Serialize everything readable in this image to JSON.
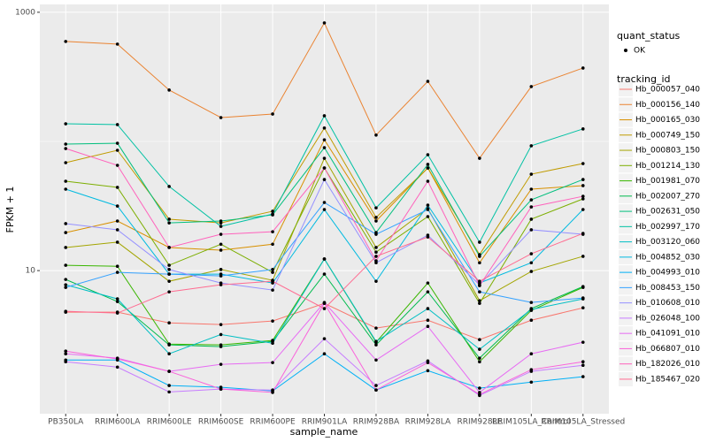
{
  "chart_data": {
    "type": "line",
    "x_label": "sample_name",
    "y_label": "FPKM + 1",
    "categories": [
      "PB350LA",
      "RRIM600LA",
      "RRIM600LE",
      "RRIM600SE",
      "RRIM600PE",
      "RRIM901LA",
      "RRIM928BA",
      "RRIM928LA",
      "RRIM928LE",
      "RRIM105LA_Control",
      "RRIM105LA_Stressed"
    ],
    "ylim": [
      0.78,
      1150
    ],
    "yticks": [
      10,
      1000
    ],
    "log_scale": true,
    "grid": true,
    "point_legend": {
      "title": "quant_status",
      "label": "OK",
      "color": "#000000"
    },
    "legend_title": "tracking_id",
    "legend_position": "right",
    "series": [
      {
        "name": "Hb_000057_040",
        "color": "#F8766D",
        "values": [
          4.77,
          4.77,
          3.94,
          3.82,
          4.07,
          5.58,
          3.59,
          4.13,
          2.92,
          4.13,
          5.15
        ]
      },
      {
        "name": "Hb_000156_140",
        "color": "#EA8331",
        "values": [
          594,
          567,
          250,
          153,
          163,
          827,
          112,
          292,
          74.1,
          266,
          370
        ]
      },
      {
        "name": "Hb_000165_030",
        "color": "#D89000",
        "values": [
          19.7,
          24.2,
          15.1,
          14.4,
          16.0,
          103,
          24.2,
          62.3,
          11.5,
          42.7,
          45.5
        ]
      },
      {
        "name": "Hb_000749_150",
        "color": "#C09B00",
        "values": [
          68.5,
          85.4,
          25.0,
          23.4,
          28.8,
          127,
          25.8,
          62.3,
          13.3,
          55.8,
          67.4
        ]
      },
      {
        "name": "Hb_000803_150",
        "color": "#A3A500",
        "values": [
          15.1,
          16.6,
          8.27,
          10.2,
          8.41,
          74.1,
          15.1,
          30.2,
          5.85,
          9.85,
          12.9
        ]
      },
      {
        "name": "Hb_001214_130",
        "color": "#7CAE00",
        "values": [
          49.2,
          44.1,
          11.0,
          16.0,
          9.69,
          62.3,
          13.9,
          26.2,
          5.58,
          25.0,
          35.9
        ]
      },
      {
        "name": "Hb_001981_070",
        "color": "#39B600",
        "values": [
          11.0,
          10.8,
          2.7,
          2.66,
          2.88,
          12.3,
          2.79,
          8.02,
          1.97,
          4.92,
          7.41
        ]
      },
      {
        "name": "Hb_002007_270",
        "color": "#00BB4E",
        "values": [
          8.54,
          5.76,
          2.66,
          2.58,
          2.83,
          9.39,
          2.66,
          6.85,
          2.1,
          5.08,
          7.53
        ]
      },
      {
        "name": "Hb_002631_050",
        "color": "#00BF7D",
        "values": [
          95.3,
          96.8,
          23.4,
          24.2,
          27.0,
          89.5,
          19.7,
          66.4,
          12.9,
          35.3,
          50.7
        ]
      },
      {
        "name": "Hb_002997_170",
        "color": "#00C1A3",
        "values": [
          137,
          135,
          44.8,
          22.0,
          27.4,
          158,
          30.6,
          78.9,
          16.6,
          92.5,
          125
        ]
      },
      {
        "name": "Hb_003120_060",
        "color": "#00BFC4",
        "values": [
          7.77,
          6.04,
          2.27,
          3.2,
          2.74,
          12.3,
          2.83,
          5.08,
          2.46,
          5.0,
          6.04
        ]
      },
      {
        "name": "Hb_004852_030",
        "color": "#00BAE0",
        "values": [
          42.7,
          31.6,
          9.39,
          9.39,
          8.02,
          29.7,
          8.27,
          32.1,
          8.02,
          11.5,
          29.7
        ]
      },
      {
        "name": "Hb_004993_010",
        "color": "#00B0F6",
        "values": [
          2.03,
          2.03,
          1.29,
          1.25,
          1.17,
          2.27,
          1.19,
          1.68,
          1.23,
          1.37,
          1.51
        ]
      },
      {
        "name": "Hb_008453_150",
        "color": "#35A2FF",
        "values": [
          7.41,
          9.69,
          9.39,
          9.1,
          10.2,
          33.7,
          19.1,
          29.7,
          6.85,
          5.67,
          6.14
        ]
      },
      {
        "name": "Hb_010608_010",
        "color": "#9590FF",
        "values": [
          23.1,
          20.7,
          10.2,
          8.02,
          7.07,
          50.7,
          11.5,
          18.8,
          7.77,
          20.7,
          19.1
        ]
      },
      {
        "name": "Hb_026048_100",
        "color": "#C77CFF",
        "values": [
          1.97,
          1.79,
          1.15,
          1.21,
          1.19,
          2.97,
          1.29,
          2.0,
          1.08,
          1.66,
          1.85
        ]
      },
      {
        "name": "Hb_041091_010",
        "color": "#E76BF3",
        "values": [
          2.27,
          2.1,
          1.66,
          1.88,
          1.94,
          5.67,
          2.03,
          3.7,
          1.14,
          2.27,
          2.79
        ]
      },
      {
        "name": "Hb_066807_010",
        "color": "#FA62DB",
        "values": [
          2.38,
          2.07,
          1.66,
          1.21,
          1.14,
          5.58,
          1.19,
          1.94,
          1.1,
          1.71,
          1.97
        ]
      },
      {
        "name": "Hb_182026_010",
        "color": "#FF62BC",
        "values": [
          88.1,
          65.3,
          15.1,
          19.1,
          20.0,
          62.3,
          11.9,
          49.2,
          7.65,
          31.1,
          37.6
        ]
      },
      {
        "name": "Hb_185467_020",
        "color": "#FF6C91",
        "values": [
          4.84,
          4.69,
          6.85,
          7.77,
          8.27,
          5.08,
          12.9,
          18.2,
          8.27,
          13.5,
          19.4
        ]
      }
    ]
  }
}
